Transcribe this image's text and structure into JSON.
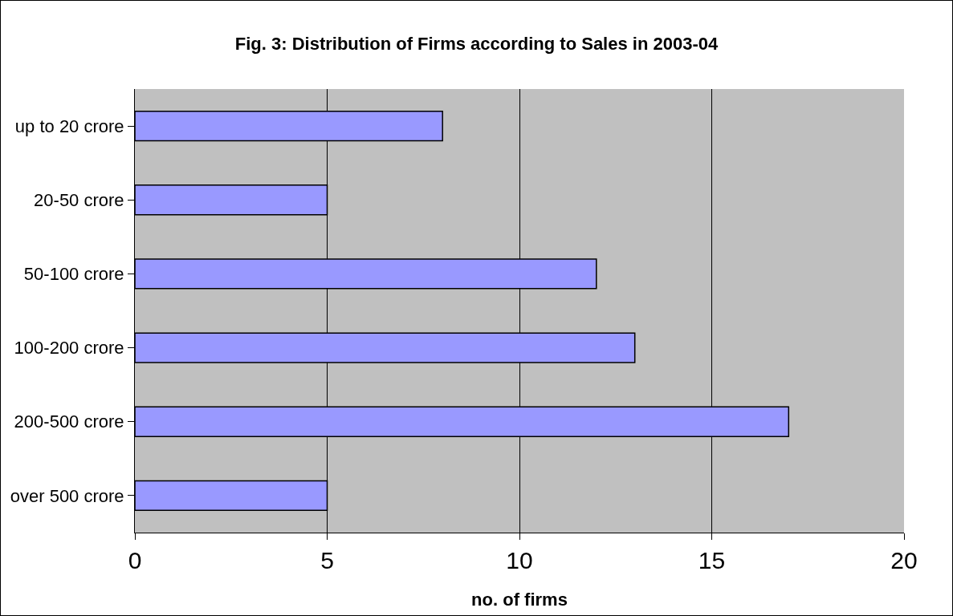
{
  "chart_data": {
    "type": "bar",
    "orientation": "horizontal",
    "title": "Fig. 3: Distribution of Firms according to Sales in 2003-04",
    "xlabel": "no. of firms",
    "categories": [
      "up to 20 crore",
      "20-50 crore",
      "50-100 crore",
      "100-200 crore",
      "200-500 crore",
      "over 500 crore"
    ],
    "values": [
      8,
      5,
      12,
      13,
      17,
      5
    ],
    "color": "#9999ff",
    "xlim": [
      0,
      20
    ],
    "xticks": [
      0,
      5,
      10,
      15,
      20
    ],
    "grid": "x",
    "legend": false
  }
}
